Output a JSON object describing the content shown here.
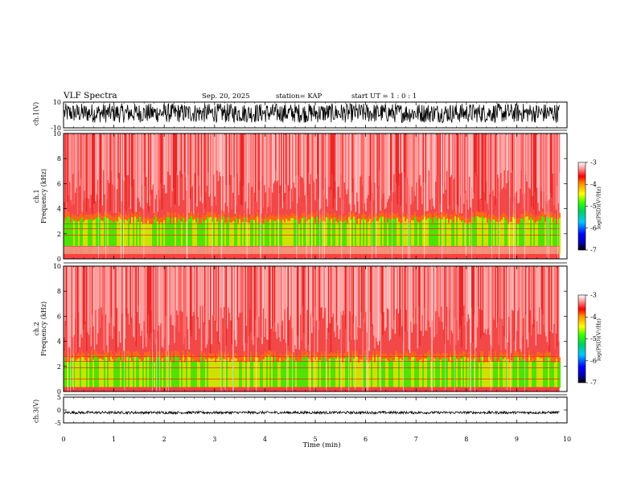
{
  "header": {
    "title": "VLF Spectra",
    "date": "Sep. 20, 2025",
    "station": "station= KAP",
    "start": "start  UT =   1 : 0  : 1"
  },
  "chart_data": [
    {
      "type": "line",
      "name": "ch1-waveform",
      "ylabel": "ch.1(V)",
      "ylim": [
        -10,
        10
      ],
      "y_ticks": [
        "10",
        "-10"
      ],
      "xlim": [
        0,
        10
      ],
      "trace_end_min": 9.85,
      "trace_range": [
        -6,
        9
      ],
      "color": "#000000"
    },
    {
      "type": "heatmap",
      "name": "ch1-spectrogram",
      "ylabel": "ch.1",
      "ylabel2": "Frequency  (kHz)",
      "ylim": [
        0,
        10
      ],
      "y_ticks": [
        "0",
        "2",
        "4",
        "6",
        "8",
        "10"
      ],
      "xlim": [
        0,
        10
      ],
      "data_end_min": 9.85,
      "bands_khz": {
        "noise_low": 0.4,
        "noise_high": 3.5,
        "gap_low": 0.4,
        "gap_high": 1.0
      },
      "color_scale": {
        "label": "log(PSD)(V²/Hz)",
        "min": -7,
        "max": -3,
        "ticks": [
          "-3",
          "-4",
          "-5",
          "-6",
          "-7"
        ]
      }
    },
    {
      "type": "heatmap",
      "name": "ch2-spectrogram",
      "ylabel": "ch.2",
      "ylabel2": "Frequency  (kHz)",
      "ylim": [
        0,
        10
      ],
      "y_ticks": [
        "0",
        "2",
        "4",
        "6",
        "8",
        "10"
      ],
      "xlim": [
        0,
        10
      ],
      "data_end_min": 9.85,
      "bands_khz": {
        "noise_low": 0.3,
        "noise_high": 3.0,
        "gap_low": 0.0,
        "gap_high": 0.0
      },
      "color_scale": {
        "label": "log(PSD)(V²/Hz)",
        "min": -7,
        "max": -3,
        "ticks": [
          "-3",
          "-4",
          "-5",
          "-6",
          "-7"
        ]
      }
    },
    {
      "type": "line",
      "name": "ch3-waveform",
      "ylabel": "ch.3(V)",
      "ylim": [
        -5,
        5
      ],
      "y_ticks": [
        "5",
        "0",
        "-5"
      ],
      "xlim": [
        0,
        10
      ],
      "trace_end_min": 9.85,
      "trace_range": [
        -1.5,
        -0.5
      ],
      "color": "#000000"
    }
  ],
  "x_axis": {
    "label": "Time  (min)",
    "ticks": [
      "0",
      "1",
      "2",
      "3",
      "4",
      "5",
      "6",
      "7",
      "8",
      "9",
      "10"
    ]
  }
}
